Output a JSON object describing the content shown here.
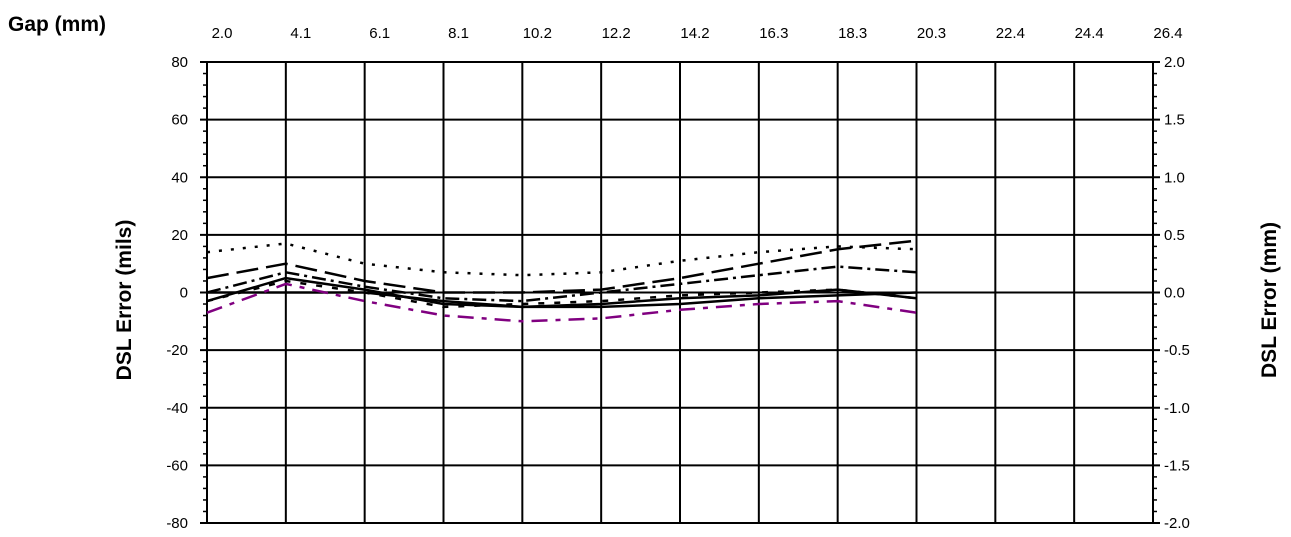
{
  "chart_data": {
    "type": "line",
    "title": "",
    "top_axis": {
      "label": "Gap (mm)",
      "ticks": [
        "2.0",
        "4.1",
        "6.1",
        "8.1",
        "10.2",
        "12.2",
        "14.2",
        "16.3",
        "18.3",
        "20.3",
        "22.4",
        "24.4",
        "26.4"
      ]
    },
    "y_left": {
      "label": "DSL Error (mils)",
      "ylim": [
        -80,
        80
      ],
      "ticks": [
        "80",
        "60",
        "40",
        "20",
        "0",
        "-20",
        "-40",
        "-60",
        "-80"
      ]
    },
    "y_right": {
      "label": "DSL Error (mm)",
      "ylim": [
        -2.0,
        2.0
      ],
      "ticks": [
        "2.0",
        "1.5",
        "1.0",
        "0.5",
        "0.0",
        "-0.5",
        "-1.0",
        "-1.5",
        "-2.0"
      ]
    },
    "grid": true,
    "x": [
      0,
      1,
      2,
      3,
      4,
      5,
      6,
      7,
      8,
      9
    ],
    "series": [
      {
        "style": "solid",
        "color": "#000000",
        "values": [
          0,
          0,
          0,
          -3,
          -5,
          -5,
          -4,
          -2,
          -1,
          0
        ]
      },
      {
        "style": "solid",
        "color": "#000000",
        "values": [
          -3,
          5,
          1,
          -4,
          -5,
          -4,
          -2,
          -1,
          1,
          -2
        ]
      },
      {
        "style": "long-dash",
        "color": "#000000",
        "values": [
          5,
          10,
          4,
          0,
          0,
          1,
          5,
          10,
          15,
          18
        ]
      },
      {
        "style": "dash-dot",
        "color": "#000000",
        "values": [
          0,
          7,
          2,
          -2,
          -3,
          0,
          3,
          6,
          9,
          7
        ]
      },
      {
        "style": "dotted",
        "color": "#000000",
        "values": [
          14,
          17,
          10,
          7,
          6,
          7,
          11,
          14,
          16,
          15
        ]
      },
      {
        "style": "short-dash",
        "color": "#000000",
        "values": [
          -3,
          4,
          0,
          -5,
          -4,
          -3,
          -1,
          0,
          1,
          -2
        ]
      },
      {
        "style": "dashed",
        "color": "#800080",
        "values": [
          -7,
          3,
          -3,
          -8,
          -10,
          -9,
          -6,
          -4,
          -3,
          -7
        ]
      }
    ]
  }
}
